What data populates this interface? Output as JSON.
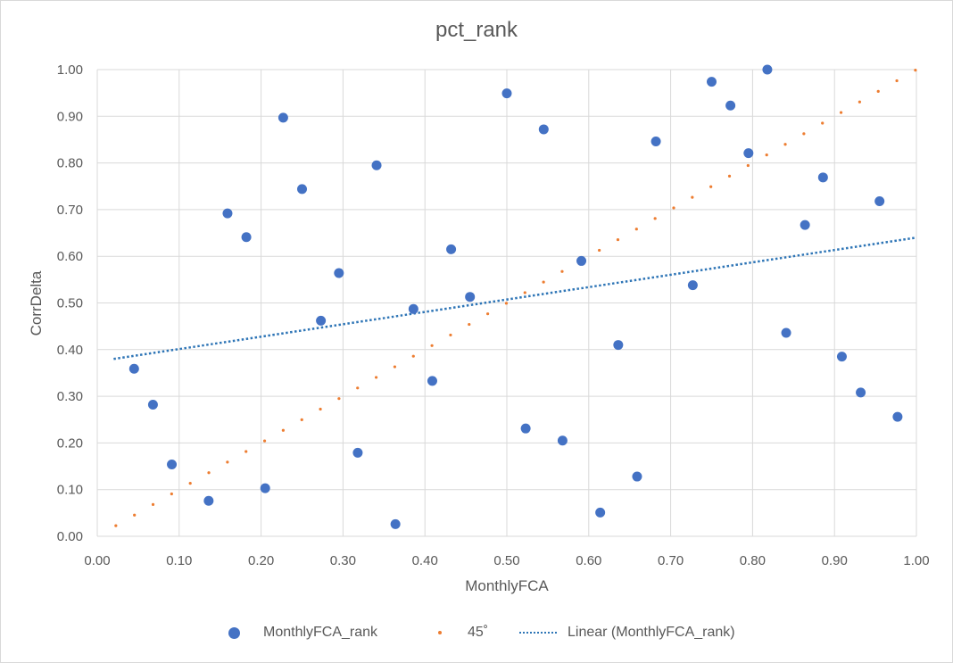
{
  "chart_data": {
    "type": "scatter",
    "title": "pct_rank",
    "xlabel": "MonthlyFCA",
    "ylabel": "CorrDelta",
    "xlim": [
      0,
      1
    ],
    "ylim": [
      0,
      1
    ],
    "x_ticks": [
      "0.00",
      "0.10",
      "0.20",
      "0.30",
      "0.40",
      "0.50",
      "0.60",
      "0.70",
      "0.80",
      "0.90",
      "1.00"
    ],
    "y_ticks": [
      "0.00",
      "0.10",
      "0.20",
      "0.30",
      "0.40",
      "0.50",
      "0.60",
      "0.70",
      "0.80",
      "0.90",
      "1.00"
    ],
    "grid": true,
    "legend_position": "bottom",
    "series": [
      {
        "name": "MonthlyFCA_rank",
        "kind": "markers",
        "color": "#4472c4",
        "points": [
          [
            0.045,
            0.359
          ],
          [
            0.068,
            0.282
          ],
          [
            0.091,
            0.154
          ],
          [
            0.136,
            0.076
          ],
          [
            0.159,
            0.692
          ],
          [
            0.182,
            0.641
          ],
          [
            0.205,
            0.103
          ],
          [
            0.227,
            0.897
          ],
          [
            0.25,
            0.744
          ],
          [
            0.273,
            0.462
          ],
          [
            0.295,
            0.564
          ],
          [
            0.318,
            0.179
          ],
          [
            0.341,
            0.795
          ],
          [
            0.364,
            0.026
          ],
          [
            0.386,
            0.487
          ],
          [
            0.409,
            0.333
          ],
          [
            0.432,
            0.615
          ],
          [
            0.455,
            0.513
          ],
          [
            0.5,
            0.949
          ],
          [
            0.523,
            0.231
          ],
          [
            0.545,
            0.872
          ],
          [
            0.568,
            0.205
          ],
          [
            0.591,
            0.59
          ],
          [
            0.614,
            0.051
          ],
          [
            0.636,
            0.41
          ],
          [
            0.659,
            0.128
          ],
          [
            0.682,
            0.846
          ],
          [
            0.727,
            0.538
          ],
          [
            0.75,
            0.974
          ],
          [
            0.773,
            0.923
          ],
          [
            0.795,
            0.821
          ],
          [
            0.818,
            1.0
          ],
          [
            0.841,
            0.436
          ],
          [
            0.864,
            0.667
          ],
          [
            0.886,
            0.769
          ],
          [
            0.909,
            0.385
          ],
          [
            0.932,
            0.308
          ],
          [
            0.955,
            0.718
          ],
          [
            0.977,
            0.256
          ]
        ]
      },
      {
        "name": "45˚",
        "kind": "small-dots",
        "color": "#ed7d31",
        "x_start": 0.0227,
        "x_step": 0.0227,
        "count": 44
      },
      {
        "name": "Linear (MonthlyFCA_rank)",
        "kind": "trendline",
        "color": "#2e75b6",
        "x": [
          0.02,
          1.0
        ],
        "y": [
          0.38,
          0.64
        ]
      }
    ]
  }
}
